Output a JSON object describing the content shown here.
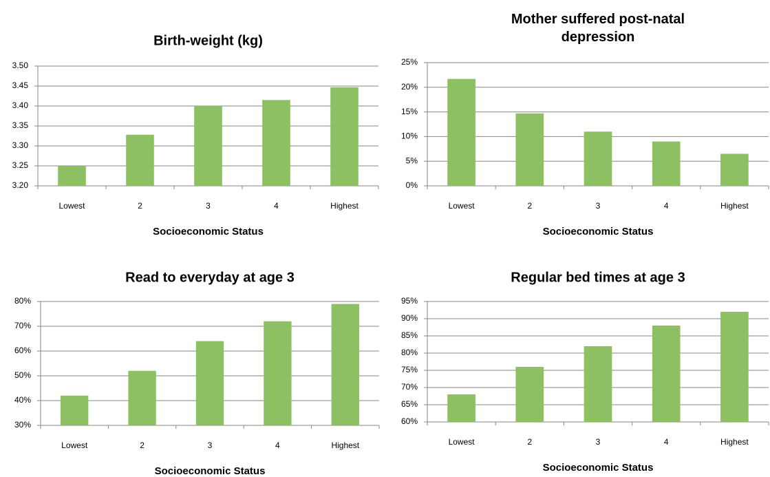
{
  "chart_data": [
    {
      "type": "bar",
      "title": "Birth-weight (kg)",
      "x_label": "Socioeconomic Status",
      "categories": [
        "Lowest",
        "2",
        "3",
        "4",
        "Highest"
      ],
      "values": [
        3.25,
        3.328,
        3.4,
        3.415,
        3.447
      ],
      "color": "#8dbf63",
      "ylim": [
        3.2,
        3.5
      ],
      "yticks": [
        {
          "value": 3.2,
          "label": "3.20"
        },
        {
          "value": 3.25,
          "label": "3.25"
        },
        {
          "value": 3.3,
          "label": "3.30"
        },
        {
          "value": 3.35,
          "label": "3.35"
        },
        {
          "value": 3.4,
          "label": "3.40"
        },
        {
          "value": 3.45,
          "label": "3.45"
        },
        {
          "value": 3.5,
          "label": "3.50"
        }
      ],
      "grid": true
    },
    {
      "type": "bar",
      "title": "Mother suffered post-natal depression",
      "x_label": "Socioeconomic Status",
      "categories": [
        "Lowest",
        "2",
        "3",
        "4",
        "Highest"
      ],
      "values": [
        21.7,
        14.7,
        11.0,
        9.0,
        6.5
      ],
      "color": "#8dbf63",
      "ylim": [
        0,
        25
      ],
      "yticks": [
        {
          "value": 0,
          "label": "0%"
        },
        {
          "value": 5,
          "label": "5%"
        },
        {
          "value": 10,
          "label": "10%"
        },
        {
          "value": 15,
          "label": "15%"
        },
        {
          "value": 20,
          "label": "20%"
        },
        {
          "value": 25,
          "label": "25%"
        }
      ],
      "grid": true
    },
    {
      "type": "bar",
      "title": "Read to everyday at age 3",
      "x_label": "Socioeconomic Status",
      "categories": [
        "Lowest",
        "2",
        "3",
        "4",
        "Highest"
      ],
      "values": [
        42,
        52,
        64,
        72,
        79
      ],
      "color": "#8dbf63",
      "ylim": [
        30,
        80
      ],
      "yticks": [
        {
          "value": 30,
          "label": "30%"
        },
        {
          "value": 40,
          "label": "40%"
        },
        {
          "value": 50,
          "label": "50%"
        },
        {
          "value": 60,
          "label": "60%"
        },
        {
          "value": 70,
          "label": "70%"
        },
        {
          "value": 80,
          "label": "80%"
        }
      ],
      "grid": true
    },
    {
      "type": "bar",
      "title": "Regular bed times at age 3",
      "x_label": "Socioeconomic Status",
      "categories": [
        "Lowest",
        "2",
        "3",
        "4",
        "Highest"
      ],
      "values": [
        68,
        76,
        82,
        88,
        92
      ],
      "color": "#8dbf63",
      "ylim": [
        60,
        95
      ],
      "yticks": [
        {
          "value": 60,
          "label": "60%"
        },
        {
          "value": 65,
          "label": "65%"
        },
        {
          "value": 70,
          "label": "70%"
        },
        {
          "value": 75,
          "label": "75%"
        },
        {
          "value": 80,
          "label": "80%"
        },
        {
          "value": 85,
          "label": "85%"
        },
        {
          "value": 90,
          "label": "90%"
        },
        {
          "value": 95,
          "label": "95%"
        }
      ],
      "grid": true
    }
  ]
}
